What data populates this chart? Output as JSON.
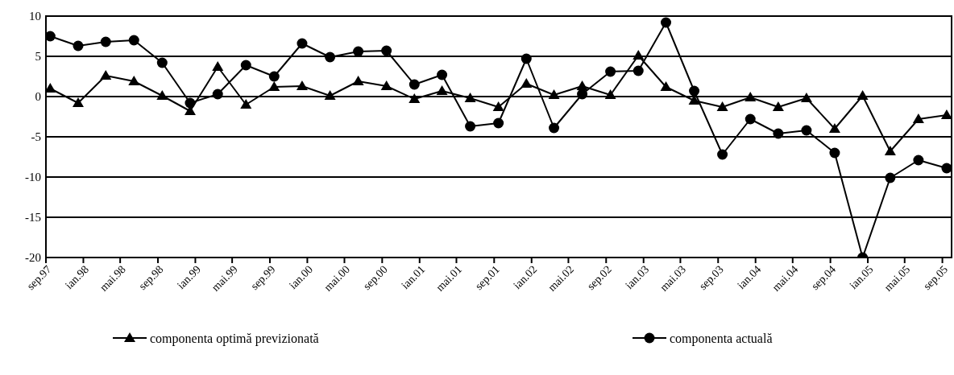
{
  "chart_data": {
    "type": "line",
    "x": [
      "1997-09-15",
      "1997-12-15",
      "1998-03-15",
      "1998-06-15",
      "1998-09-15",
      "1998-12-15",
      "1999-03-15",
      "1999-06-15",
      "1999-09-15",
      "1999-12-15",
      "2000-03-15",
      "2000-06-15",
      "2000-09-15",
      "2000-12-15",
      "2001-03-15",
      "2001-06-15",
      "2001-09-15",
      "2001-12-15",
      "2002-03-15",
      "2002-06-15",
      "2002-09-15",
      "2002-12-15",
      "2003-03-15",
      "2003-06-15",
      "2003-09-15",
      "2003-12-15",
      "2004-03-15",
      "2004-06-15",
      "2004-09-15",
      "2004-12-15",
      "2005-03-15",
      "2005-06-15",
      "2005-09-15"
    ],
    "series": [
      {
        "name": "componenta optimă previzionată",
        "color": "#000000",
        "marker": "triangle",
        "values": [
          1.0,
          -0.8,
          2.6,
          1.9,
          0.1,
          -1.8,
          3.7,
          -1.0,
          1.2,
          1.3,
          0.1,
          1.9,
          1.3,
          -0.3,
          0.7,
          -0.2,
          -1.3,
          1.6,
          0.2,
          1.3,
          0.2,
          5.1,
          1.2,
          -0.5,
          -1.3,
          -0.1,
          -1.3,
          -0.2,
          -4.0,
          0.1,
          -6.8,
          -2.8,
          -2.3
        ]
      },
      {
        "name": "componenta actuală",
        "color": "#000000",
        "marker": "circle",
        "values": [
          7.5,
          6.3,
          6.8,
          7.0,
          4.2,
          -0.8,
          0.3,
          3.9,
          2.5,
          6.6,
          4.9,
          5.6,
          5.7,
          1.5,
          2.7,
          -3.7,
          -3.3,
          4.7,
          -3.9,
          0.3,
          3.1,
          3.2,
          9.2,
          0.7,
          -7.2,
          -2.8,
          -4.6,
          -4.2,
          -7.0,
          -20,
          -10.1,
          -7.9,
          -8.9
        ]
      }
    ],
    "xlim": [
      "1997-09-01",
      "2005-10-01"
    ],
    "xticks": [
      {
        "value": "1997-09-01",
        "label": "sep.97"
      },
      {
        "value": "1998-01-01",
        "label": "ian.98"
      },
      {
        "value": "1998-05-01",
        "label": "mai.98"
      },
      {
        "value": "1998-09-01",
        "label": "sep.98"
      },
      {
        "value": "1999-01-01",
        "label": "ian.99"
      },
      {
        "value": "1999-05-01",
        "label": "mai.99"
      },
      {
        "value": "1999-09-01",
        "label": "sep.99"
      },
      {
        "value": "2000-01-01",
        "label": "ian.00"
      },
      {
        "value": "2000-05-01",
        "label": "mai.00"
      },
      {
        "value": "2000-09-01",
        "label": "sep.00"
      },
      {
        "value": "2001-01-01",
        "label": "ian.01"
      },
      {
        "value": "2001-05-01",
        "label": "mai.01"
      },
      {
        "value": "2001-09-01",
        "label": "sep.01"
      },
      {
        "value": "2002-01-01",
        "label": "ian.02"
      },
      {
        "value": "2002-05-01",
        "label": "mai.02"
      },
      {
        "value": "2002-09-01",
        "label": "sep.02"
      },
      {
        "value": "2003-01-01",
        "label": "ian.03"
      },
      {
        "value": "2003-05-01",
        "label": "mai.03"
      },
      {
        "value": "2003-09-01",
        "label": "sep.03"
      },
      {
        "value": "2004-01-01",
        "label": "ian.04"
      },
      {
        "value": "2004-05-01",
        "label": "mai.04"
      },
      {
        "value": "2004-09-01",
        "label": "sep.04"
      },
      {
        "value": "2005-01-01",
        "label": "ian.05"
      },
      {
        "value": "2005-05-01",
        "label": "mai.05"
      },
      {
        "value": "2005-09-01",
        "label": "sep.05"
      }
    ],
    "ylim": [
      -20,
      10
    ],
    "yticks": [
      -20,
      -15,
      -10,
      -5,
      0,
      5,
      10
    ],
    "grid": "y",
    "legend": "bottom",
    "line_style": "solid"
  }
}
